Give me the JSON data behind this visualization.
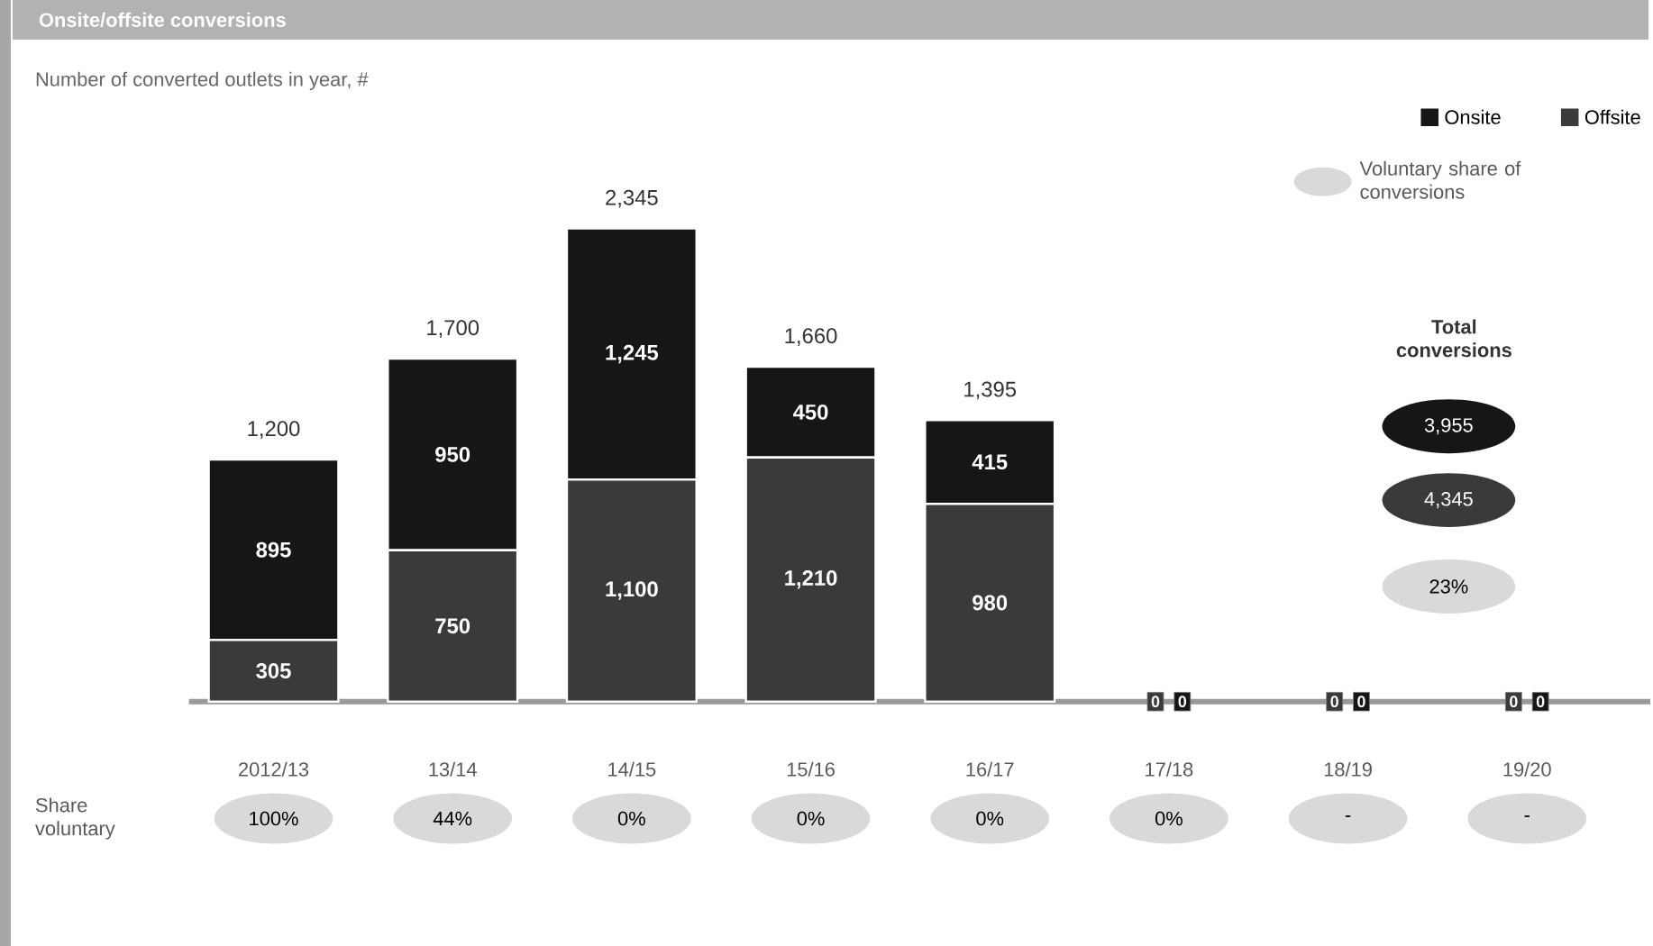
{
  "chart_data": {
    "type": "bar",
    "title": "Onsite/offsite conversions",
    "subtitle": "Number of converted outlets in year, #",
    "categories": [
      "2012/13",
      "13/14",
      "14/15",
      "15/16",
      "16/17",
      "17/18",
      "18/19",
      "19/20"
    ],
    "stacked": true,
    "legend": "top right",
    "series": [
      {
        "name": "Offsite",
        "color": "#3a3a3a",
        "values": [
          305,
          750,
          1100,
          1210,
          980,
          0,
          0,
          0
        ],
        "value_labels": [
          "305",
          "750",
          "1,100",
          "1,210",
          "980",
          "0",
          "0",
          "0"
        ]
      },
      {
        "name": "Onsite",
        "color": "#161616",
        "values": [
          895,
          950,
          1245,
          450,
          415,
          0,
          0,
          0
        ],
        "value_labels": [
          "895",
          "950",
          "1,245",
          "450",
          "415",
          "0",
          "0",
          "0"
        ]
      }
    ],
    "totals": [
      "1,200",
      "1,700",
      "2,345",
      "1,660",
      "1,395",
      null,
      null,
      null
    ],
    "annotations": [
      "Voluntary share of conversions",
      "Total conversions",
      "3,955",
      "4,345",
      "23%",
      "Share voluntary",
      "100%",
      "44%",
      "0%",
      "0%",
      "0%",
      "0%",
      "-",
      "-"
    ]
  }
}
